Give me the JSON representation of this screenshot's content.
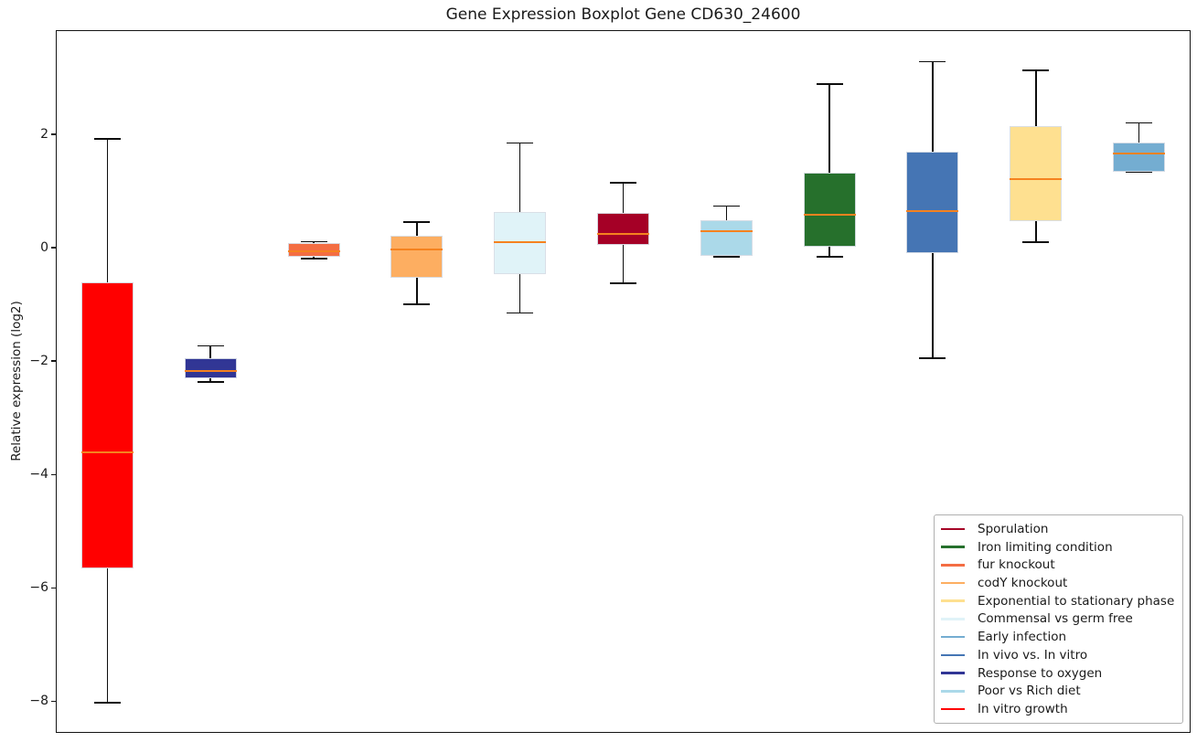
{
  "chart_data": {
    "type": "boxplot",
    "title": "Gene Expression Boxplot Gene CD630_24600",
    "ylabel": "Relative expression (log2)",
    "xlabel": "",
    "ylim": [
      -8.56,
      3.84
    ],
    "yticks": [
      2,
      0,
      -2,
      -4,
      -6,
      -8
    ],
    "grid": false,
    "legend_position": "lower right",
    "median_color": "#f5821f",
    "whisker_color": "#0d0d0d",
    "box_edge_color": "#d8dde6",
    "boxes": [
      {
        "condition": "In vitro growth",
        "color": "#ff0000",
        "whislo": -8.03,
        "q1": -5.65,
        "med": -3.61,
        "q3": -0.61,
        "whishi": 1.92
      },
      {
        "condition": "Response to oxygen",
        "color": "#313695",
        "whislo": -2.37,
        "q1": -2.31,
        "med": -2.18,
        "q3": -1.95,
        "whishi": -1.73
      },
      {
        "condition": "fur knockout",
        "color": "#f46d43",
        "whislo": -0.19,
        "q1": -0.16,
        "med": -0.06,
        "q3": 0.08,
        "whishi": 0.11
      },
      {
        "condition": "codY knockout",
        "color": "#fdae61",
        "whislo": -1.0,
        "q1": -0.53,
        "med": -0.03,
        "q3": 0.21,
        "whishi": 0.45
      },
      {
        "condition": "Commensal vs germ free",
        "color": "#e0f3f8",
        "whislo": -1.15,
        "q1": -0.47,
        "med": 0.1,
        "q3": 0.63,
        "whishi": 1.85
      },
      {
        "condition": "Sporulation",
        "color": "#a50026",
        "whislo": -0.63,
        "q1": 0.05,
        "med": 0.24,
        "q3": 0.61,
        "whishi": 1.15
      },
      {
        "condition": "Poor vs Rich diet",
        "color": "#abd9e9",
        "whislo": -0.16,
        "q1": -0.15,
        "med": 0.29,
        "q3": 0.48,
        "whishi": 0.74
      },
      {
        "condition": "Iron limiting condition",
        "color": "#26702c",
        "whislo": -0.16,
        "q1": 0.02,
        "med": 0.58,
        "q3": 1.32,
        "whishi": 2.89
      },
      {
        "condition": "In vivo vs. In vitro",
        "color": "#4575b4",
        "whislo": -1.95,
        "q1": -0.1,
        "med": 0.65,
        "q3": 1.69,
        "whishi": 3.28
      },
      {
        "condition": "Exponential to stationary phase",
        "color": "#fee090",
        "whislo": 0.1,
        "q1": 0.47,
        "med": 1.21,
        "q3": 2.15,
        "whishi": 3.13
      },
      {
        "condition": "Early infection",
        "color": "#74add1",
        "whislo": 1.33,
        "q1": 1.34,
        "med": 1.66,
        "q3": 1.85,
        "whishi": 2.2
      }
    ],
    "legend": [
      {
        "label": "Sporulation",
        "color": "#a50026"
      },
      {
        "label": "Iron limiting condition",
        "color": "#26702c"
      },
      {
        "label": "fur knockout",
        "color": "#f46d43"
      },
      {
        "label": "codY knockout",
        "color": "#fdae61"
      },
      {
        "label": "Exponential to stationary phase",
        "color": "#fee090"
      },
      {
        "label": "Commensal vs germ free",
        "color": "#e0f3f8"
      },
      {
        "label": "Early infection",
        "color": "#74add1"
      },
      {
        "label": "In vivo vs. In vitro",
        "color": "#4575b4"
      },
      {
        "label": "Response to oxygen",
        "color": "#313695"
      },
      {
        "label": "Poor vs Rich diet",
        "color": "#abd9e9"
      },
      {
        "label": "In vitro growth",
        "color": "#ff0000"
      }
    ]
  }
}
